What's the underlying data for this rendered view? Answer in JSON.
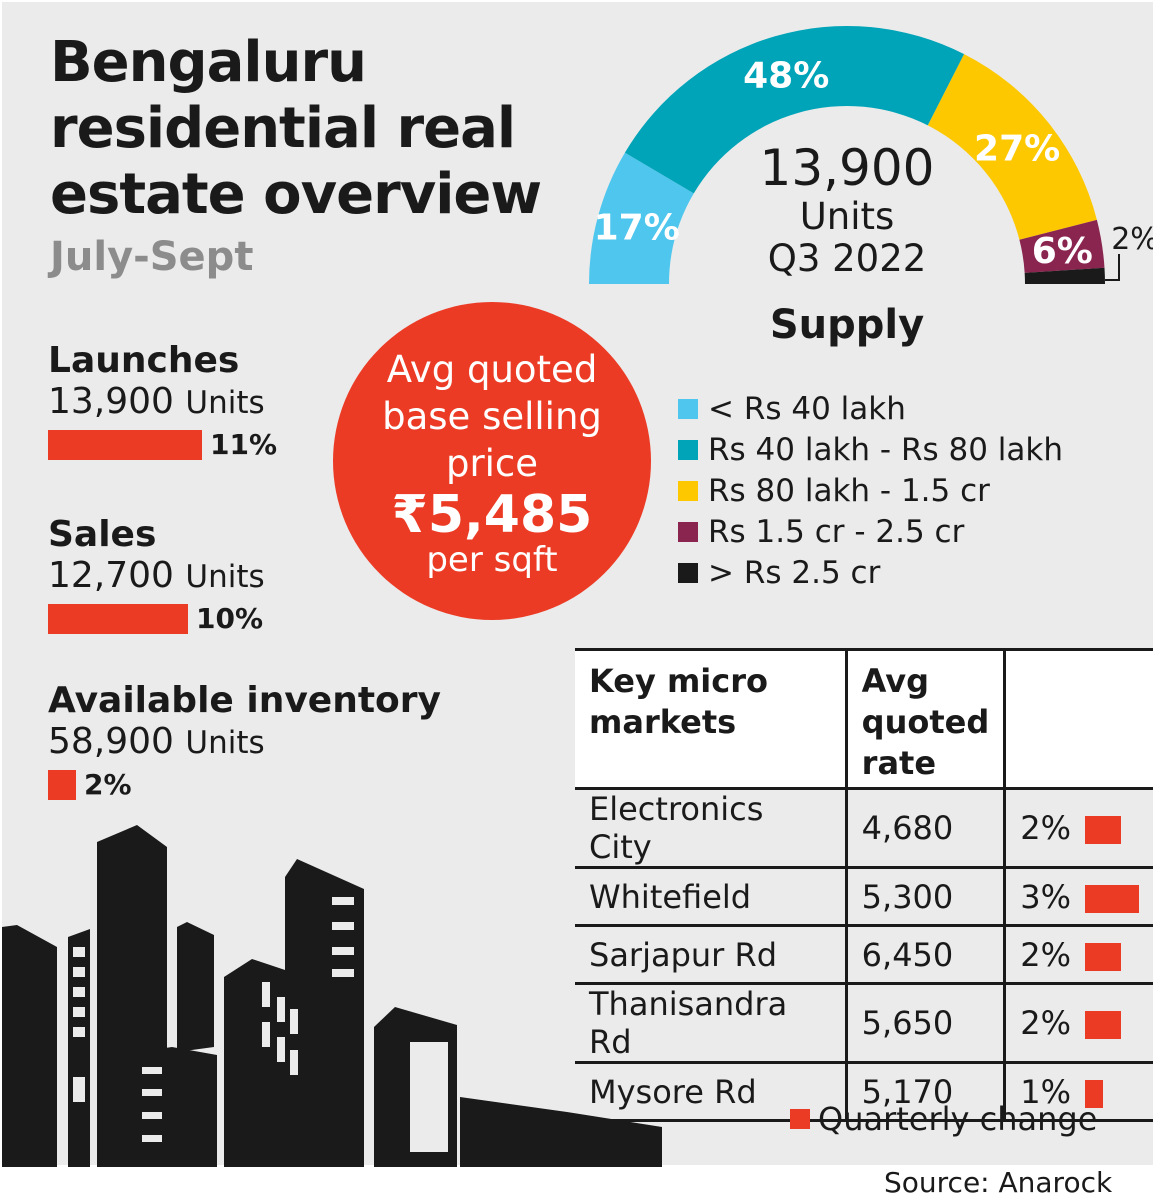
{
  "title_lines": [
    "Bengaluru",
    "residential real",
    "estate overview"
  ],
  "subtitle": "July-Sept",
  "stats": [
    {
      "label": "Launches",
      "value": "13,900",
      "unit": "Units",
      "change": "11%",
      "change_pct": 11
    },
    {
      "label": "Sales",
      "value": "12,700",
      "unit": "Units",
      "change": "10%",
      "change_pct": 10
    },
    {
      "label": "Available inventory",
      "value": "58,900",
      "unit": "Units",
      "change": "2%",
      "change_pct": 2
    }
  ],
  "price": {
    "lines": [
      "Avg quoted",
      "base selling",
      "price"
    ],
    "value": "₹5,485",
    "unit": "per sqft"
  },
  "colors": {
    "accent": "#ec3b25",
    "background": "#ebebeb"
  },
  "chart_data": {
    "type": "pie",
    "subtype": "half-donut",
    "title": "Supply",
    "center_lines": [
      "13,900",
      "Units",
      "Q3 2022"
    ],
    "categories": [
      "< Rs 40 lakh",
      "Rs 40 lakh - Rs 80 lakh",
      "Rs 80 lakh - 1.5 cr",
      "Rs 1.5 cr - 2.5 cr",
      "> Rs 2.5 cr"
    ],
    "values": [
      17,
      48,
      27,
      6,
      2
    ],
    "labels": [
      "17%",
      "48%",
      "27%",
      "6%",
      "2%"
    ],
    "colors": [
      "#4ec6ee",
      "#00a4b8",
      "#fdc800",
      "#8a2550",
      "#1a1a1a"
    ],
    "legend_position": "bottom"
  },
  "table": {
    "headers": [
      "Key micro markets",
      "Avg quoted rate",
      ""
    ],
    "rows": [
      {
        "market": "Electronics City",
        "rate": "4,680",
        "change": "2%",
        "change_pct": 2
      },
      {
        "market": "Whitefield",
        "rate": "5,300",
        "change": "3%",
        "change_pct": 3
      },
      {
        "market": "Sarjapur Rd",
        "rate": "6,450",
        "change": "2%",
        "change_pct": 2
      },
      {
        "market": "Thanisandra Rd",
        "rate": "5,650",
        "change": "2%",
        "change_pct": 2
      },
      {
        "market": "Mysore Rd",
        "rate": "5,170",
        "change": "1%",
        "change_pct": 1
      }
    ],
    "legend": "Quarterly change"
  },
  "source": "Source: Anarock"
}
